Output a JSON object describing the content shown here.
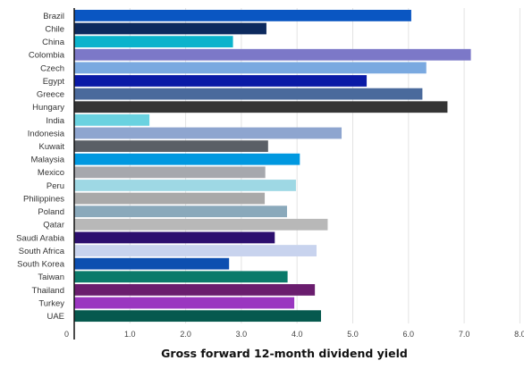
{
  "chart_data": {
    "type": "bar",
    "orientation": "horizontal",
    "title": "",
    "xlabel": "Gross forward 12-month dividend yield",
    "ylabel": "",
    "xlim": [
      0,
      8.0
    ],
    "xticks": [
      "0",
      "1.0",
      "2.0",
      "3.0",
      "4.0",
      "5.0",
      "6.0",
      "7.0",
      "8.0"
    ],
    "grid": true,
    "legend": "none",
    "categories": [
      "Brazil",
      "Chile",
      "China",
      "Colombia",
      "Czech",
      "Egypt",
      "Greece",
      "Hungary",
      "India",
      "Indonesia",
      "Kuwait",
      "Malaysia",
      "Mexico",
      "Peru",
      "Philippines",
      "Poland",
      "Qatar",
      "Saudi Arabia",
      "South Africa",
      "South Korea",
      "Taiwan",
      "Thailand",
      "Turkey",
      "UAE"
    ],
    "values": [
      6.05,
      3.45,
      2.85,
      7.12,
      6.32,
      5.25,
      6.25,
      6.7,
      1.35,
      4.8,
      3.48,
      4.05,
      3.43,
      3.98,
      3.42,
      3.82,
      4.55,
      3.6,
      4.35,
      2.78,
      3.83,
      4.32,
      3.95,
      4.43
    ],
    "colors": [
      "#0a56c2",
      "#0c2a5e",
      "#0bb3cc",
      "#7c78c8",
      "#7aa9e0",
      "#0a1aa6",
      "#4a6a9c",
      "#353535",
      "#6ad2e0",
      "#8ea5cf",
      "#5a5f66",
      "#0098e0",
      "#a6a8ad",
      "#9ed8e4",
      "#a9a9a9",
      "#8aa9bb",
      "#b8b8b8",
      "#2c0f6e",
      "#c8d3ee",
      "#0d4fb0",
      "#0b7a6a",
      "#6a1d6e",
      "#9a36c0",
      "#06594e"
    ]
  }
}
